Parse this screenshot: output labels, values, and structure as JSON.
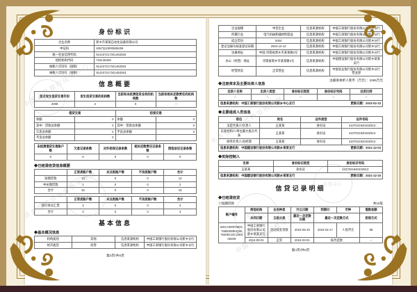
{
  "frame": {
    "outer_band_color": "#b2945c",
    "bottom_band_color": "#3d2026",
    "ornament_color": "#9b7322",
    "margin_color": "#f6efdc"
  },
  "watermark": {
    "lines": [
      "中国人民银行征信中心",
      "仅供办理信贷业务参考使用",
      "不作任何形式的信用担保"
    ],
    "seal_text": "征信中心"
  },
  "left_page": {
    "title_identity": "身份标识",
    "identity_table": {
      "rows": [
        [
          "企业名称",
          "新乡市某某自动化设备有限公司"
        ],
        [
          "中征码",
          "4067Q10000585259"
        ],
        [
          "统一社会信用代码",
          "914107217341453363"
        ],
        [
          "组织机构代码",
          "734145336"
        ],
        [
          "纳税人识别号（国税）",
          "914107217341453363"
        ],
        [
          "纳税人识别号（地税）",
          "914107217341453363"
        ]
      ]
    },
    "title_summary": "信息概要",
    "summary_table": {
      "head": [
        "首次发生信贷交易年份",
        "发生信贷交易的机构数",
        "当前有未结清信贷业务的机构数",
        "当前有相关还款责任的机构数"
      ],
      "rows": [
        [
          "2008",
          "2",
          "0",
          "--"
        ]
      ]
    },
    "balance_table": {
      "head_left": "借贷交易",
      "head_right": "担保交易",
      "rows": [
        [
          "余额",
          "0",
          "余额",
          "0"
        ],
        [
          "其中：贷款总余额",
          "0",
          "其中：垫款总余额",
          "0"
        ],
        [
          "欠息总余额",
          "0",
          "不良总余额",
          "0"
        ],
        [
          "不良总余额",
          "0",
          "",
          ""
        ]
      ]
    },
    "counts_table": {
      "head": [
        "未结清借贷交易账户数",
        "欠息记录条数",
        "对外担保记录条数",
        "相关还款责任记录条数",
        "授信协议记录条数"
      ],
      "rows": [
        [
          "0",
          "0",
          "0",
          "0",
          "0"
        ]
      ]
    },
    "settled_summary_title": "◆已结清信贷信息概要",
    "settled_table1": {
      "head": [
        "",
        "正常类账户数",
        "关注类账户数",
        "不良类账户数",
        "合计"
      ],
      "rows": [
        [
          "短期贷款",
          "13",
          "0",
          "0",
          "13"
        ],
        [
          "中长期贷款",
          "2",
          "0",
          "0",
          "2"
        ],
        [
          "合计",
          "15",
          "0",
          "0",
          "15"
        ]
      ]
    },
    "settled_table2": {
      "head": [
        "",
        "正常类账户数",
        "关注类账户数",
        "不良类账户数",
        "合计"
      ],
      "rows": [
        [
          "银行承兑汇票",
          "3",
          "0",
          "0",
          "3"
        ],
        [
          "合计",
          "3",
          "0",
          "0",
          "3"
        ]
      ]
    },
    "title_basic": "基本信息",
    "basic_title": "◆基本概况信息",
    "basic_table": {
      "rows": [
        [
          "机构类别",
          "其他",
          "信息来源机构",
          "中国工商银行股份有限公司新乡分行"
        ],
        [
          "经济类型",
          "民营",
          "信息来源机构",
          "中国工商银行股份有限公司新乡分行"
        ]
      ]
    },
    "footer": "第3页/共6页"
  },
  "right_page": {
    "basic_cont_table": {
      "rows": [
        [
          "企业规模",
          "中型企业",
          "信息来源机构",
          "中国工商银行股份有限公司新乡分行"
        ],
        [
          "所属行业",
          "电气机械和器材制造业",
          "信息来源机构",
          "中国工商银行股份有限公司新乡分行"
        ],
        [
          "成立年份",
          "2004",
          "信息来源机构",
          "中国工商银行股份有限公司新乡分行"
        ],
        [
          "登记注册号核准登记日期",
          "2004-10-12",
          "信息来源机构",
          "中国工商银行股份有限公司新乡分行"
        ],
        [
          "注册地址",
          "中国·河南省新乡市某某路2号",
          "信息来源机构",
          "中国工商银行股份有限公司新乡分行"
        ],
        [
          "办公（经营）地址",
          "河南省新乡市某某路2号",
          "信息来源机构",
          "中国建设银行股份有限公司新乡某某支行"
        ],
        [
          "经营状态",
          "正常营业",
          "信息来源机构",
          "中国农业银行股份有限公司新乡分行营业部"
        ]
      ]
    },
    "capital_section": {
      "title": "◆注册资本及主要出资人信息",
      "note": "注册资本折人民币（万元）：3365万元",
      "table": {
        "head": [
          "出资人名称",
          "出资人类型",
          "身份标识类型",
          "身份标识号码",
          "出资比例"
        ],
        "rows": [
          [
            "--",
            "--",
            "--",
            "--",
            "--"
          ]
        ]
      },
      "source": "信息来源机构：中国工商银行股份有限公司新乡中心支行",
      "updated": "更新日期：2023-02-23"
    },
    "members_section": {
      "title": "◆主要组成人员信息",
      "table": {
        "head": [
          "职位",
          "姓名",
          "证件类型",
          "证件号码"
        ],
        "rows": [
          [
            "法定代表人/负责人",
            "王某某",
            "身份证",
            "4107021940432913"
          ],
          [
            "实际控制人/单位最大股东代表",
            "王某某",
            "身份证",
            "4107021940432913"
          ],
          [
            "财务负责人/总经理",
            "王某某",
            "身份证",
            "4107021940432913"
          ]
        ]
      },
      "source": "信息来源机构：中国建设银行股份有限公司新乡某某支行",
      "updated": "更新日期：2021-12-03"
    },
    "controller_section": {
      "title": "◆实际控制人",
      "table": {
        "head": [
          "名称",
          "身份标识类型",
          "身份标识号码"
        ],
        "rows": [
          [
            "王某某",
            "身份证",
            "4107021940432913"
          ]
        ]
      },
      "source": "信息来源机构：中国建设银行股份有限公司新乡某某支行",
      "updated": "更新日期：2021-12-15"
    },
    "detail_title": "信贷记录明细",
    "settled_section": {
      "title": "◆已结清信贷",
      "sub": "①短期贷款",
      "count_note": "共15笔",
      "head1": [
        "账户编号",
        "授信机构",
        "业务种类",
        "开立日期",
        "到期日",
        "币种",
        "借款金额"
      ],
      "head2": [
        "关闭日期",
        "五级分类",
        "最近一次还款日期",
        "最近一次还款方式",
        "担保方式"
      ],
      "account": "B3CC000F06DC76960089HQ5K76408143C22E500209",
      "row1": [
        "中国工商银行股份有限公司新乡某某支行",
        "流动资金贷款",
        "2023-09-19",
        "2024-04-17",
        "人民币元",
        "98"
      ],
      "row2": [
        "2024-03-01",
        "正常",
        "2024-03-01",
        "按月还款",
        "--"
      ]
    },
    "footer": "第4页/共6页"
  }
}
